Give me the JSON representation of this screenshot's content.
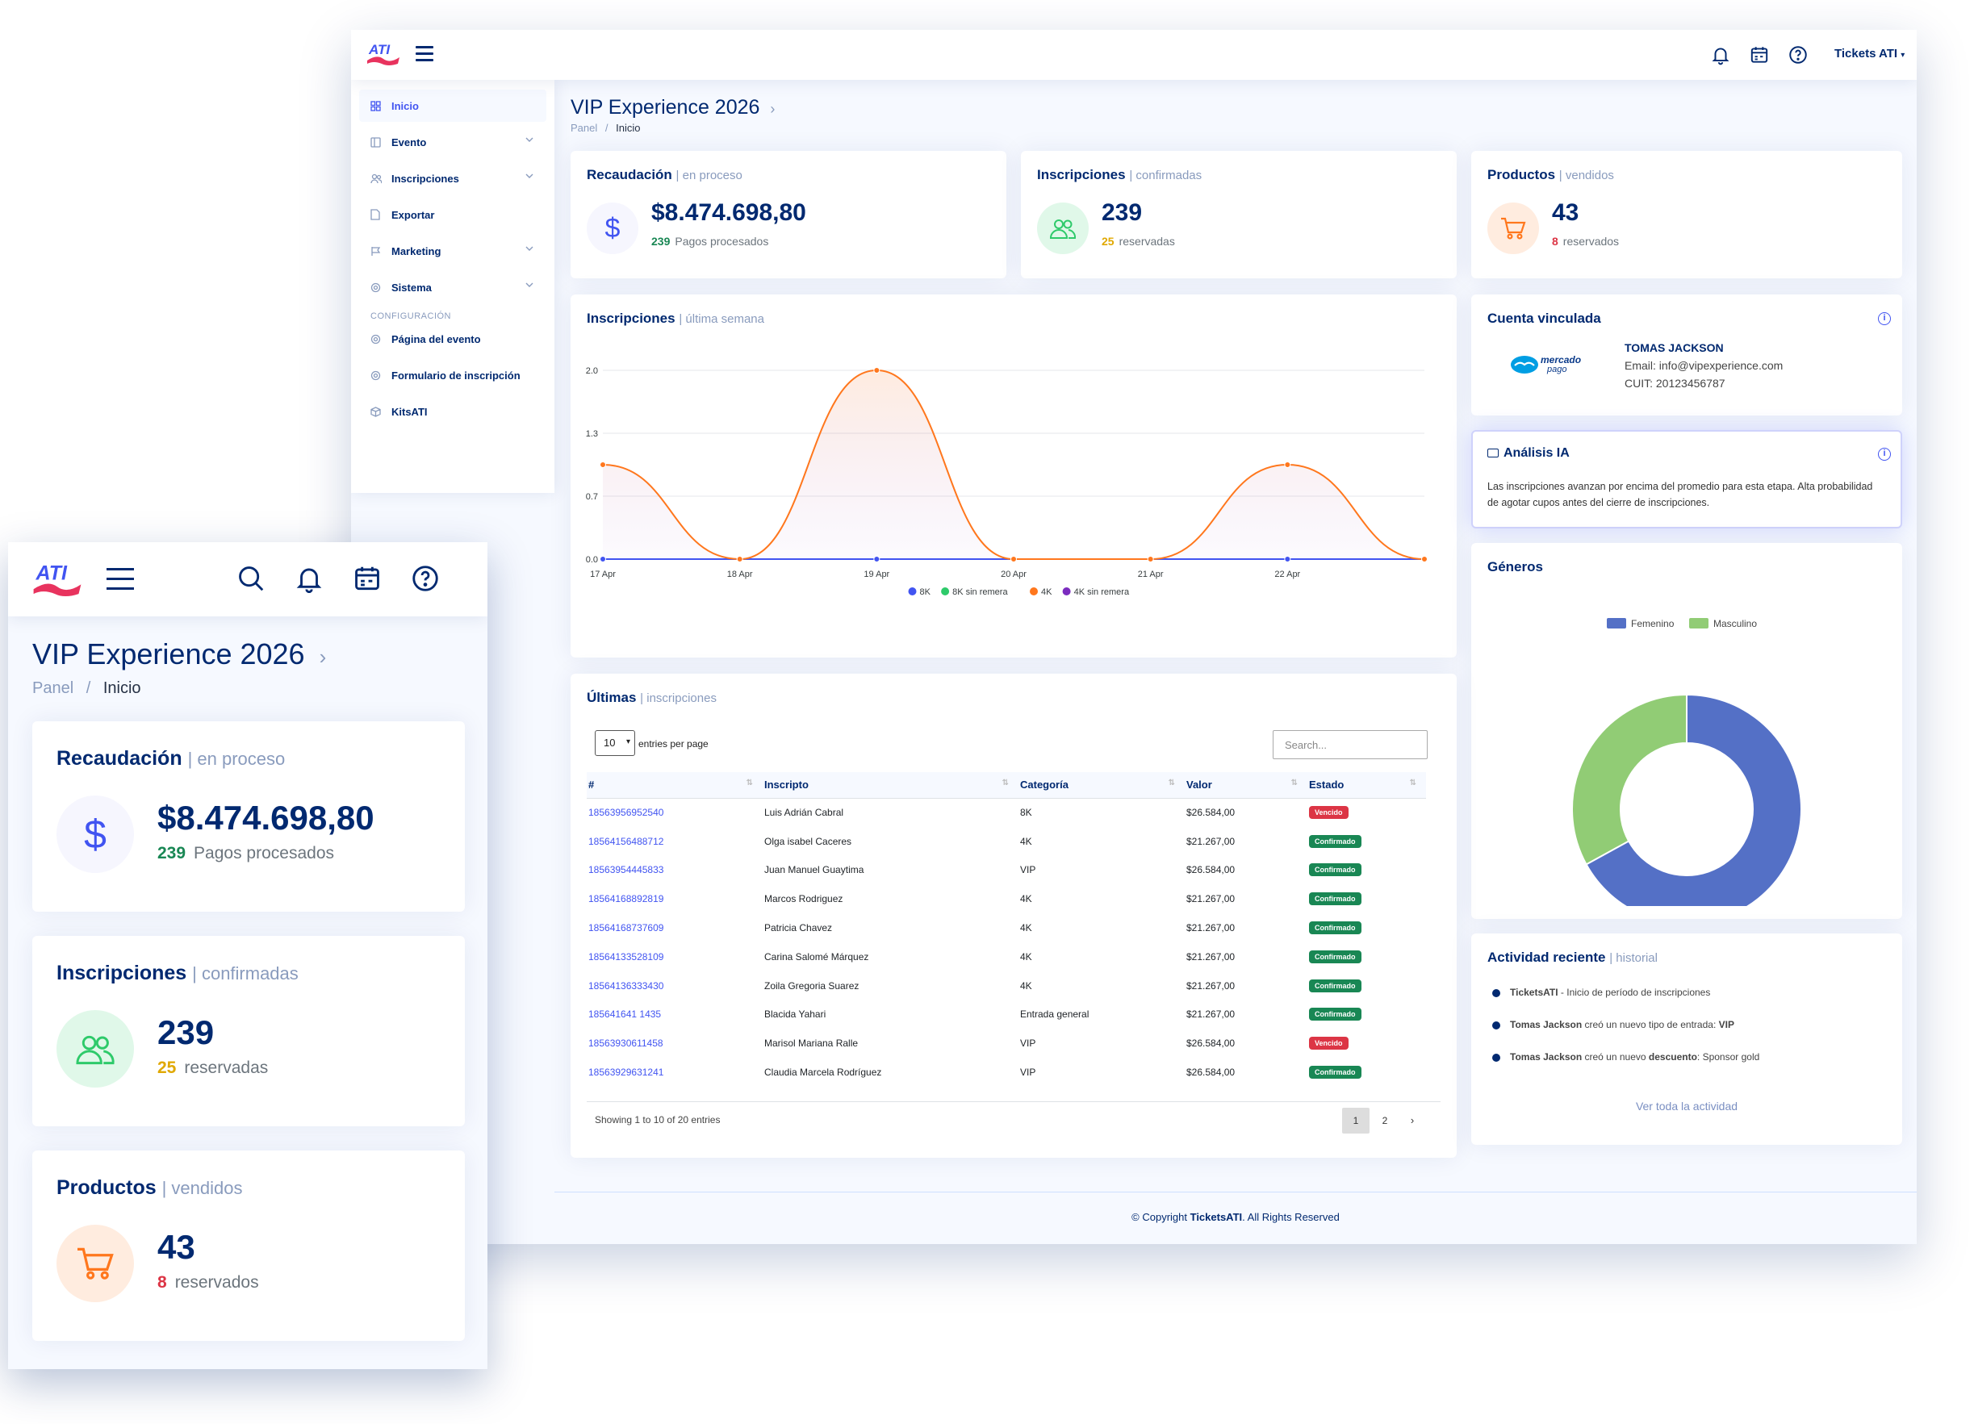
{
  "app": {
    "logo_text": "ATI",
    "profile_name": "Tickets ATI"
  },
  "sidebar": {
    "items": [
      {
        "label": "Inicio",
        "icon": "grid-icon",
        "active": true
      },
      {
        "label": "Evento",
        "icon": "layout-icon",
        "has_submenu": true
      },
      {
        "label": "Inscripciones",
        "icon": "people-icon",
        "has_submenu": true
      },
      {
        "label": "Exportar",
        "icon": "file-icon"
      },
      {
        "label": "Marketing",
        "icon": "flag-icon",
        "has_submenu": true
      },
      {
        "label": "Sistema",
        "icon": "gear-icon",
        "has_submenu": true
      }
    ],
    "config_heading": "CONFIGURACIÓN",
    "config_items": [
      {
        "label": "Página del evento",
        "icon": "gear-icon"
      },
      {
        "label": "Formulario de inscripción",
        "icon": "gear-icon"
      },
      {
        "label": "KitsATI",
        "icon": "box-icon"
      }
    ]
  },
  "page": {
    "title": "VIP Experience 2026",
    "breadcrumb_root": "Panel",
    "breadcrumb_current": "Inicio"
  },
  "kpis": {
    "recaudacion": {
      "title": "Recaudación",
      "sub": "en proceso",
      "value": "$8.474.698,80",
      "meta_num": "239",
      "meta_text": "Pagos procesados"
    },
    "inscripciones": {
      "title": "Inscripciones",
      "sub": "confirmadas",
      "value": "239",
      "meta_num": "25",
      "meta_text": "reservadas"
    },
    "productos": {
      "title": "Productos",
      "sub": "vendidos",
      "value": "43",
      "meta_num": "8",
      "meta_text": "reservados"
    }
  },
  "chart_card": {
    "title": "Inscripciones",
    "sub": "última semana"
  },
  "chart_data": [
    {
      "type": "line",
      "categories": [
        "17 Apr",
        "18 Apr",
        "19 Apr",
        "20 Apr",
        "21 Apr",
        "22 Apr",
        ""
      ],
      "y_ticks": [
        "0.0",
        "0.7",
        "1.3",
        "2.0"
      ],
      "ylim": [
        0,
        2
      ],
      "grid": true,
      "legend_position": "bottom",
      "series": [
        {
          "name": "8K",
          "color": "#4154f1",
          "values": [
            0,
            0,
            0,
            0,
            0,
            0,
            0
          ]
        },
        {
          "name": "8K sin remera",
          "color": "#2eca6a",
          "values": [
            0,
            0,
            0,
            0,
            0,
            0,
            0
          ]
        },
        {
          "name": "4K",
          "color": "#ff771d",
          "values": [
            1,
            0,
            2,
            0,
            0,
            1,
            0
          ]
        },
        {
          "name": "4K sin remera",
          "color": "#7b2cbf",
          "values": [
            0,
            0,
            0,
            0,
            0,
            0,
            0
          ]
        }
      ]
    },
    {
      "type": "pie",
      "categories": [
        "Femenino",
        "Masculino"
      ],
      "values": [
        67,
        33
      ],
      "colors": [
        "#5470c6",
        "#91cc75"
      ],
      "legend_position": "top"
    }
  ],
  "linked_account": {
    "title": "Cuenta vinculada",
    "provider_line1": "mercado",
    "provider_line2": "pago",
    "name": "TOMAS JACKSON",
    "email": "Email: info@vipexperience.com",
    "cuit": "CUIT: 20123456787"
  },
  "ai": {
    "title": "Análisis IA",
    "text": "Las inscripciones avanzan por encima del promedio para esta etapa. Alta probabilidad de agotar cupos antes del cierre de inscripciones."
  },
  "genders": {
    "title": "Géneros"
  },
  "latest": {
    "title": "Últimas",
    "sub": "inscripciones",
    "entries_value": "10",
    "entries_label": "entries per page",
    "search_placeholder": "Search...",
    "columns": [
      "#",
      "Inscripto",
      "Categoría",
      "Valor",
      "Estado"
    ],
    "rows": [
      {
        "id": "18563956952540",
        "name": "Luis Adrián Cabral",
        "cat": "8K",
        "value": "$26.584,00",
        "status": "Vencido",
        "ok": false
      },
      {
        "id": "18564156488712",
        "name": "Olga isabel Caceres",
        "cat": "4K",
        "value": "$21.267,00",
        "status": "Confirmado",
        "ok": true
      },
      {
        "id": "18563954445833",
        "name": "Juan Manuel Guaytima",
        "cat": "VIP",
        "value": "$26.584,00",
        "status": "Confirmado",
        "ok": true
      },
      {
        "id": "18564168892819",
        "name": "Marcos Rodriguez",
        "cat": "4K",
        "value": "$21.267,00",
        "status": "Confirmado",
        "ok": true
      },
      {
        "id": "18564168737609",
        "name": "Patricia Chavez",
        "cat": "4K",
        "value": "$21.267,00",
        "status": "Confirmado",
        "ok": true
      },
      {
        "id": "18564133528109",
        "name": "Carina Salomé Márquez",
        "cat": "4K",
        "value": "$21.267,00",
        "status": "Confirmado",
        "ok": true
      },
      {
        "id": "18564136333430",
        "name": "Zoila Gregoria Suarez",
        "cat": "4K",
        "value": "$21.267,00",
        "status": "Confirmado",
        "ok": true
      },
      {
        "id": "185641641 1435",
        "name": "Blacida Yahari",
        "cat": "Entrada general",
        "value": "$21.267,00",
        "status": "Confirmado",
        "ok": true
      },
      {
        "id": "18563930611458",
        "name": "Marisol Mariana Ralle",
        "cat": "VIP",
        "value": "$26.584,00",
        "status": "Vencido",
        "ok": false
      },
      {
        "id": "18563929631241",
        "name": "Claudia Marcela Rodríguez",
        "cat": "VIP",
        "value": "$26.584,00",
        "status": "Confirmado",
        "ok": true
      }
    ],
    "showing": "Showing 1 to 10 of 20 entries",
    "pages": [
      "1",
      "2",
      "›"
    ]
  },
  "activity": {
    "title": "Actividad reciente",
    "sub": "historial",
    "items": [
      {
        "actor": "TicketsATI",
        "text": " - Inicio de período de inscripciones",
        "bold_tail": ""
      },
      {
        "actor": "Tomas Jackson",
        "text": " creó un nuevo tipo de entrada: ",
        "bold_tail": "VIP"
      },
      {
        "actor": "Tomas Jackson",
        "text": " creó un nuevo ",
        "bold_tail": "descuento",
        "tail": ": Sponsor gold"
      }
    ],
    "see_all": "Ver toda la actividad"
  },
  "footer": {
    "prefix": "© Copyright ",
    "brand": "TicketsATI",
    "suffix": ". All Rights Reserved"
  }
}
